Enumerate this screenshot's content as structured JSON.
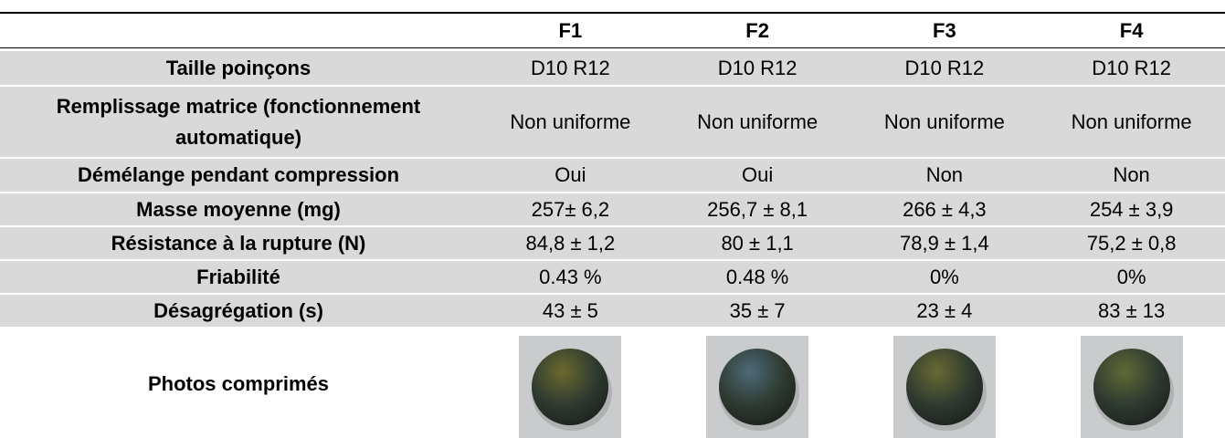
{
  "table": {
    "columns": [
      "F1",
      "F2",
      "F3",
      "F4"
    ],
    "rows": [
      {
        "label": "Taille poinçons",
        "values": [
          "D10 R12",
          "D10 R12",
          "D10 R12",
          "D10 R12"
        ]
      },
      {
        "label": "Remplissage matrice (fonctionnement automatique)",
        "values": [
          "Non uniforme",
          "Non uniforme",
          "Non uniforme",
          "Non uniforme"
        ]
      },
      {
        "label": "Démélange pendant compression",
        "values": [
          "Oui",
          "Oui",
          "Non",
          "Non"
        ]
      },
      {
        "label": "Masse moyenne (mg)",
        "values": [
          "257± 6,2",
          "256,7 ± 8,1",
          "266 ± 4,3",
          "254 ± 3,9"
        ]
      },
      {
        "label": "Résistance à la rupture (N)",
        "values": [
          "84,8 ± 1,2",
          "80 ± 1,1",
          "78,9 ± 1,4",
          "75,2 ± 0,8"
        ]
      },
      {
        "label": "Friabilité",
        "values": [
          "0.43 %",
          "0.48 %",
          "0%",
          "0%"
        ]
      },
      {
        "label": "Désagrégation (s)",
        "values": [
          "43 ± 5",
          "35 ± 7",
          "23 ± 4",
          "83 ± 13"
        ]
      }
    ],
    "photo_row_label": "Photos comprimés"
  }
}
